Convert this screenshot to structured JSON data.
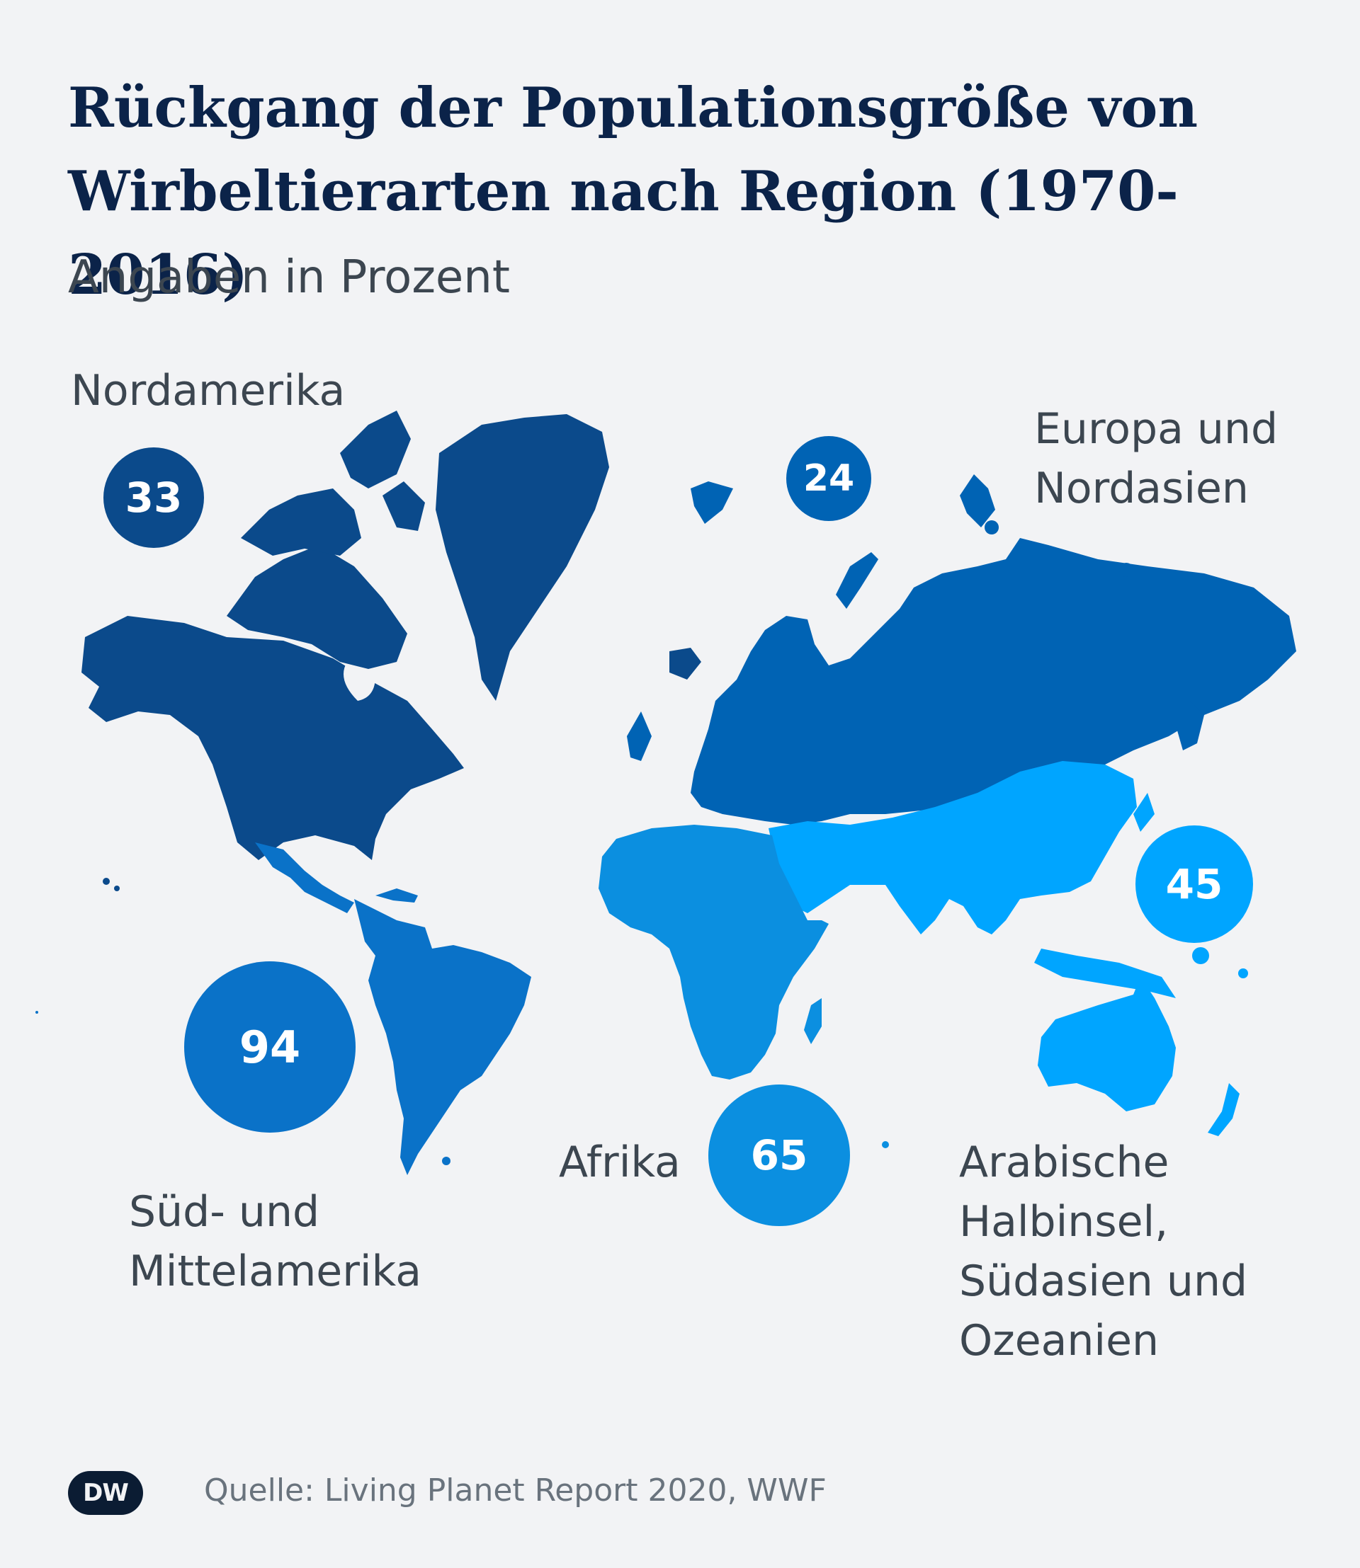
{
  "title": "Rückgang der Populationsgröße von Wirbeltierarten nach Region (1970-2016)",
  "subtitle": "Angaben in Prozent",
  "regions": [
    {
      "id": "nordamerika",
      "label": "Nordamerika",
      "value": "33",
      "color": "#0b4a8b"
    },
    {
      "id": "europa",
      "label": "Europa und Nordasien",
      "value": "24",
      "color": "#0063b4"
    },
    {
      "id": "asien",
      "label": "Arabische Halbinsel, Südasien und Ozeanien",
      "value": "45",
      "color": "#00a5ff"
    },
    {
      "id": "afrika",
      "label": "Afrika",
      "value": "65",
      "color": "#0b8fe0"
    },
    {
      "id": "suedamerika",
      "label": "Süd- und Mittelamerika",
      "value": "94",
      "color": "#0a72c8"
    }
  ],
  "source": "Quelle: Living Planet Report 2020, WWF",
  "logo": "DW",
  "colors": {
    "background": "#f2f3f5",
    "title": "#0b2349",
    "label": "#3c4650",
    "source": "#69737d"
  }
}
